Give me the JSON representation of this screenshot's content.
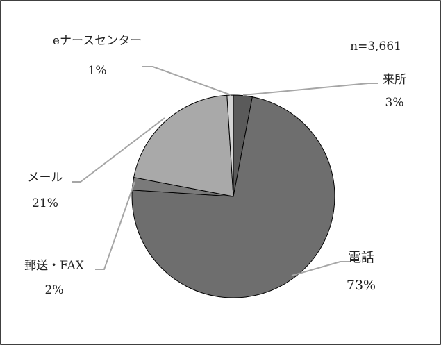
{
  "chart_data": {
    "type": "pie",
    "annotation": "n=3,661",
    "slices": [
      {
        "label": "来所",
        "value": 3,
        "value_label": "3%",
        "color": "#5a5a5a"
      },
      {
        "label": "電話",
        "value": 73,
        "value_label": "73%",
        "color": "#6e6e6e"
      },
      {
        "label": "郵送・FAX",
        "value": 2,
        "value_label": "2%",
        "color": "#7a7a7a"
      },
      {
        "label": "メール",
        "value": 21,
        "value_label": "21%",
        "color": "#a9a9a9"
      },
      {
        "label": "eナースセンター",
        "value": 1,
        "value_label": "1%",
        "color": "#d4d4d4"
      }
    ],
    "start": "12 o'clock",
    "direction": "clockwise",
    "legend": "none"
  }
}
